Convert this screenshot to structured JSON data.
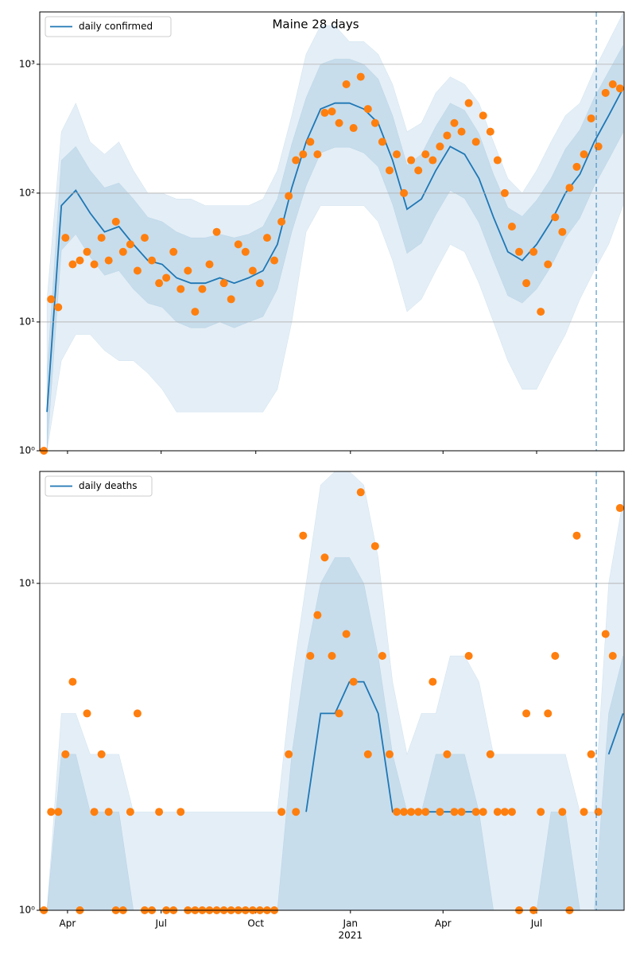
{
  "chart_data": [
    {
      "type": "line",
      "title": "Maine 28 days",
      "log_y": true,
      "grid": true,
      "legend": "upper left",
      "xlim": [
        0,
        568
      ],
      "ylim": [
        1,
        2550
      ],
      "yticks": [
        {
          "value": 1,
          "label": "10⁰"
        },
        {
          "value": 10,
          "label": "10¹"
        },
        {
          "value": 100,
          "label": "10²"
        },
        {
          "value": 1000,
          "label": "10³"
        }
      ],
      "vline_x": 541,
      "series": [
        {
          "name": "daily confirmed",
          "color": "#1f77b4",
          "x": [
            7,
            21,
            35,
            49,
            63,
            77,
            91,
            105,
            119,
            133,
            147,
            161,
            175,
            189,
            203,
            217,
            231,
            245,
            259,
            273,
            287,
            301,
            315,
            329,
            343,
            357,
            371,
            385,
            399,
            413,
            427,
            441,
            455,
            469,
            483,
            497,
            511,
            525,
            539,
            553,
            567
          ],
          "values": [
            2,
            80,
            105,
            70,
            50,
            55,
            40,
            30,
            28,
            22,
            20,
            20,
            22,
            20,
            22,
            25,
            40,
            110,
            250,
            450,
            500,
            500,
            450,
            350,
            180,
            75,
            90,
            150,
            230,
            200,
            130,
            65,
            35,
            30,
            40,
            60,
            100,
            140,
            250,
            400,
            650
          ]
        },
        {
          "color": "#ff7f0e",
          "marker": "o",
          "x": [
            4,
            11,
            18,
            25,
            32,
            39,
            46,
            53,
            60,
            67,
            74,
            81,
            88,
            95,
            102,
            109,
            116,
            123,
            130,
            137,
            144,
            151,
            158,
            165,
            172,
            179,
            186,
            193,
            200,
            207,
            214,
            221,
            228,
            235,
            242,
            249,
            256,
            263,
            270,
            277,
            284,
            291,
            298,
            305,
            312,
            319,
            326,
            333,
            340,
            347,
            354,
            361,
            368,
            375,
            382,
            389,
            396,
            403,
            410,
            417,
            424,
            431,
            438,
            445,
            452,
            459,
            466,
            473,
            480,
            487,
            494,
            501,
            508,
            515,
            522,
            529,
            536,
            543,
            550,
            557,
            564
          ],
          "values": [
            1,
            15,
            13,
            45,
            28,
            30,
            35,
            28,
            45,
            30,
            60,
            35,
            40,
            25,
            45,
            30,
            20,
            22,
            35,
            18,
            25,
            12,
            18,
            28,
            50,
            20,
            15,
            40,
            35,
            25,
            20,
            45,
            30,
            60,
            95,
            180,
            200,
            250,
            200,
            420,
            430,
            350,
            700,
            320,
            800,
            450,
            350,
            250,
            150,
            200,
            100,
            180,
            150,
            200,
            180,
            230,
            280,
            350,
            300,
            500,
            250,
            400,
            300,
            180,
            100,
            55,
            35,
            20,
            35,
            12,
            28,
            65,
            50,
            110,
            160,
            200,
            380,
            230,
            600,
            700,
            650
          ]
        }
      ],
      "bands": [
        {
          "color": "#1f77b4",
          "opacity": 0.12,
          "upper": [
            15,
            300,
            500,
            250,
            200,
            250,
            150,
            100,
            100,
            90,
            90,
            80,
            80,
            80,
            80,
            90,
            150,
            400,
            1200,
            2000,
            2000,
            1500,
            1500,
            1200,
            700,
            300,
            350,
            600,
            800,
            700,
            500,
            250,
            130,
            100,
            150,
            250,
            400,
            500,
            900,
            1500,
            2500
          ],
          "lower": [
            1,
            5,
            8,
            8,
            6,
            5,
            5,
            4,
            3,
            2,
            2,
            2,
            2,
            2,
            2,
            2,
            3,
            10,
            50,
            80,
            80,
            80,
            80,
            60,
            30,
            12,
            15,
            25,
            40,
            35,
            20,
            10,
            5,
            3,
            3,
            5,
            8,
            15,
            25,
            40,
            80
          ]
        },
        {
          "color": "#1f77b4",
          "opacity": 0.14,
          "upper": [
            4,
            180,
            230,
            150,
            110,
            120,
            90,
            65,
            60,
            50,
            45,
            45,
            48,
            45,
            48,
            55,
            90,
            240,
            550,
            1000,
            1100,
            1100,
            1000,
            770,
            400,
            165,
            200,
            330,
            500,
            440,
            290,
            140,
            77,
            66,
            88,
            130,
            220,
            310,
            550,
            880,
            1400
          ],
          "lower": [
            1,
            36,
            48,
            32,
            23,
            25,
            18,
            14,
            13,
            10,
            9,
            9,
            10,
            9,
            10,
            11,
            18,
            50,
            114,
            205,
            227,
            227,
            205,
            160,
            82,
            34,
            41,
            68,
            105,
            91,
            59,
            30,
            16,
            14,
            18,
            27,
            45,
            64,
            114,
            182,
            295
          ]
        }
      ]
    },
    {
      "type": "line",
      "log_y": true,
      "grid": true,
      "legend": "upper left",
      "xlim": [
        0,
        568
      ],
      "ylim": [
        1,
        22
      ],
      "yticks": [
        {
          "value": 1,
          "label": "10⁰"
        },
        {
          "value": 10,
          "label": "10¹"
        }
      ],
      "xticks": [
        {
          "value": 27,
          "label": "Apr"
        },
        {
          "value": 118,
          "label": "Jul"
        },
        {
          "value": 210,
          "label": "Oct"
        },
        {
          "value": 302,
          "label": "Jan"
        },
        {
          "value": 392,
          "label": "Apr"
        },
        {
          "value": 483,
          "label": "Jul"
        }
      ],
      "x_year_label": {
        "value": 302,
        "label": "2021"
      },
      "vline_x": 541,
      "series": [
        {
          "name": "daily deaths",
          "color": "#1f77b4",
          "x": [
            7,
            21,
            35,
            49,
            63,
            77,
            91,
            105,
            119,
            133,
            147,
            161,
            175,
            189,
            203,
            217,
            231,
            245,
            259,
            273,
            287,
            301,
            315,
            329,
            343,
            357,
            371,
            385,
            399,
            413,
            427,
            441,
            455,
            469,
            483,
            497,
            511,
            525,
            539,
            553,
            567
          ],
          "values": [
            null,
            null,
            null,
            null,
            null,
            null,
            null,
            null,
            null,
            null,
            null,
            null,
            null,
            null,
            null,
            null,
            null,
            null,
            2,
            4,
            4,
            5,
            5,
            4,
            2,
            2,
            2,
            2,
            2,
            2,
            2,
            null,
            null,
            null,
            null,
            null,
            null,
            null,
            null,
            3,
            4
          ]
        },
        {
          "color": "#ff7f0e",
          "marker": "o",
          "x": [
            4,
            11,
            18,
            25,
            32,
            39,
            46,
            53,
            60,
            67,
            74,
            81,
            88,
            95,
            102,
            109,
            116,
            123,
            130,
            137,
            144,
            151,
            158,
            165,
            172,
            179,
            186,
            193,
            200,
            207,
            214,
            221,
            228,
            235,
            242,
            249,
            256,
            263,
            270,
            277,
            284,
            291,
            298,
            305,
            312,
            319,
            326,
            333,
            340,
            347,
            354,
            361,
            368,
            375,
            382,
            389,
            396,
            403,
            410,
            417,
            424,
            431,
            438,
            445,
            452,
            459,
            466,
            473,
            480,
            487,
            494,
            501,
            508,
            515,
            522,
            529,
            536,
            543,
            550,
            557,
            564
          ],
          "values": [
            1,
            2,
            2,
            3,
            5,
            1,
            4,
            2,
            3,
            2,
            1,
            1,
            2,
            4,
            1,
            1,
            2,
            1,
            1,
            2,
            1,
            1,
            1,
            1,
            1,
            1,
            1,
            1,
            1,
            1,
            1,
            1,
            1,
            2,
            3,
            2,
            14,
            6,
            8,
            12,
            6,
            4,
            7,
            5,
            19,
            3,
            13,
            6,
            3,
            2,
            2,
            2,
            2,
            2,
            5,
            2,
            3,
            2,
            2,
            6,
            2,
            2,
            3,
            2,
            2,
            2,
            1,
            4,
            1,
            2,
            4,
            6,
            2,
            1,
            14,
            2,
            3,
            2,
            7,
            6,
            17
          ]
        }
      ],
      "bands": [
        {
          "color": "#1f77b4",
          "opacity": 0.12,
          "upper": [
            1,
            4,
            4,
            3,
            3,
            3,
            2,
            2,
            2,
            2,
            2,
            2,
            2,
            2,
            2,
            2,
            2,
            5,
            10,
            20,
            22,
            22,
            20,
            12,
            5,
            3,
            4,
            4,
            6,
            6,
            5,
            3,
            3,
            3,
            3,
            3,
            3,
            2,
            2,
            10,
            18
          ],
          "lower": [
            1,
            1,
            1,
            1,
            1,
            1,
            1,
            1,
            1,
            1,
            1,
            1,
            1,
            1,
            1,
            1,
            1,
            1,
            1,
            1,
            1,
            1,
            1,
            1,
            1,
            1,
            1,
            1,
            1,
            1,
            1,
            1,
            1,
            1,
            1,
            1,
            1,
            1,
            1,
            1,
            1
          ]
        },
        {
          "color": "#1f77b4",
          "opacity": 0.14,
          "upper": [
            1,
            3,
            3,
            2,
            2,
            2,
            1,
            1,
            1,
            1,
            1,
            1,
            1,
            1,
            1,
            1,
            1,
            3,
            6,
            10,
            12,
            12,
            10,
            6,
            3,
            2,
            2,
            3,
            3,
            3,
            2,
            1,
            1,
            1,
            1,
            2,
            2,
            1,
            1,
            4,
            6
          ],
          "lower": [
            1,
            1,
            1,
            1,
            1,
            1,
            1,
            1,
            1,
            1,
            1,
            1,
            1,
            1,
            1,
            1,
            1,
            1,
            1,
            1,
            1,
            1,
            1,
            1,
            1,
            1,
            1,
            1,
            1,
            1,
            1,
            1,
            1,
            1,
            1,
            1,
            1,
            1,
            1,
            1,
            1
          ]
        }
      ]
    }
  ]
}
